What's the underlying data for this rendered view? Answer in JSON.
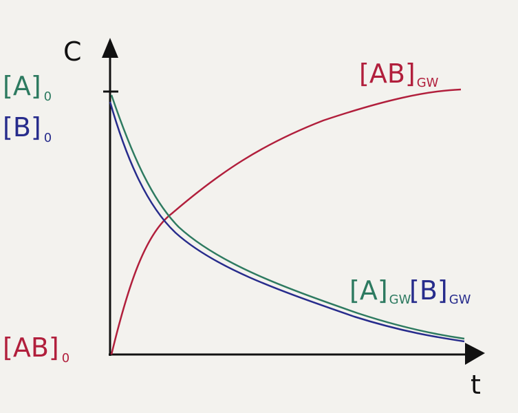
{
  "axes": {
    "y_label": "C",
    "x_label": "t"
  },
  "labels": {
    "a0": {
      "main": "[A]",
      "sub": "0"
    },
    "b0": {
      "main": "[B]",
      "sub": "0"
    },
    "ab0": {
      "main": "[AB]",
      "sub": "0"
    },
    "ab_gw": {
      "main": "[AB]",
      "sub": "GW"
    },
    "a_gw": {
      "main": "[A]",
      "sub": "GW"
    },
    "b_gw": {
      "main": "[B]",
      "sub": "GW"
    }
  }
}
